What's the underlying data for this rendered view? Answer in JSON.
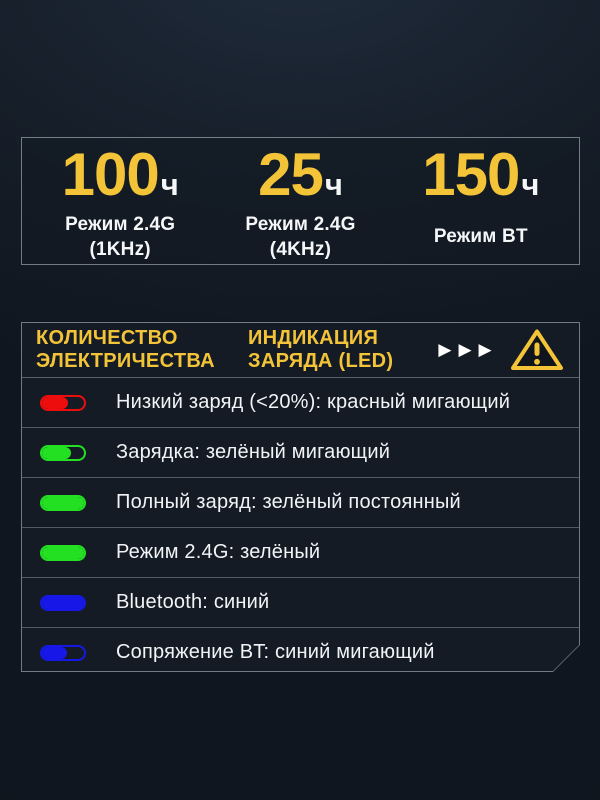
{
  "theme": {
    "background_dark": "#141b25",
    "accent_yellow": "#f3c338",
    "text_white": "#f1f3f6",
    "led_red": "#ee0d0d",
    "led_green": "#23e023",
    "led_blue": "#1717e8",
    "panel_border": "#c3cdd7"
  },
  "stats": [
    {
      "value": "100",
      "unit": "ч",
      "label_line1": "Режим 2.4G",
      "label_line2": "(1KHz)"
    },
    {
      "value": "25",
      "unit": "ч",
      "label_line1": "Режим 2.4G",
      "label_line2": "(4KHz)"
    },
    {
      "value": "150",
      "unit": "ч",
      "label_line1": "Режим BT",
      "label_line2": ""
    }
  ],
  "table": {
    "header_left_line1": "КОЛИЧЕСТВО",
    "header_left_line2": "ЭЛЕКТРИЧЕСТВА",
    "header_right_line1": "ИНДИКАЦИЯ",
    "header_right_line2": "ЗАРЯДА (LED)",
    "arrows": "▶▶▶",
    "rows": [
      {
        "led_color": "#ee0d0d",
        "fill_percent": 62,
        "text": "Низкий заряд (<20%): красный мигающий"
      },
      {
        "led_color": "#23e023",
        "fill_percent": 68,
        "text": "Зарядка: зелёный мигающий"
      },
      {
        "led_color": "#23e023",
        "fill_percent": 100,
        "text": "Полный заряд: зелёный постоянный"
      },
      {
        "led_color": "#23e023",
        "fill_percent": 100,
        "text": "Режим 2.4G: зелёный"
      },
      {
        "led_color": "#1717e8",
        "fill_percent": 100,
        "text": "Bluetooth: синий"
      },
      {
        "led_color": "#1717e8",
        "fill_percent": 60,
        "text": "Сопряжение BT: синий мигающий"
      }
    ]
  }
}
